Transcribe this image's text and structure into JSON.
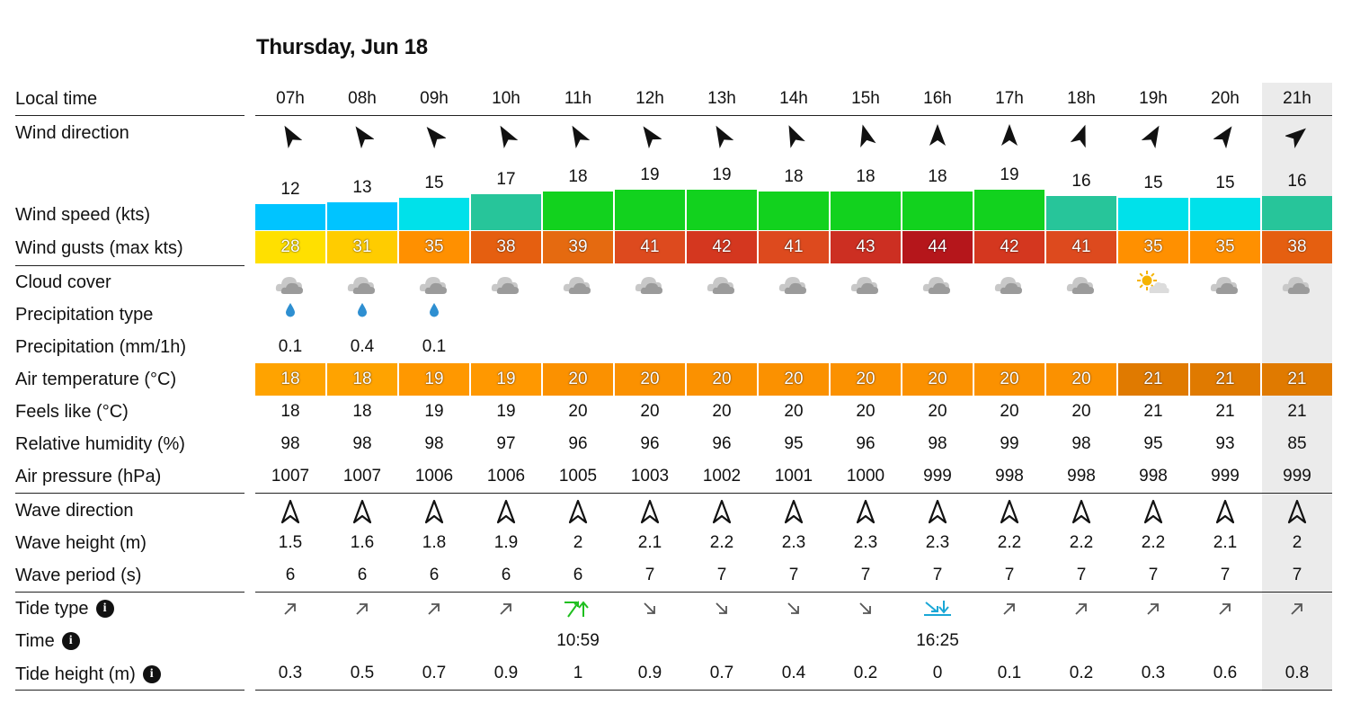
{
  "date_title": "Thursday, Jun 18",
  "highlight_index": 14,
  "labels": {
    "local_time": "Local time",
    "wind_direction": "Wind direction",
    "wind_speed": "Wind speed (kts)",
    "wind_gusts": "Wind gusts (max kts)",
    "cloud_cover": "Cloud cover",
    "precip_type": "Precipitation type",
    "precip": "Precipitation (mm/1h)",
    "air_temp": "Air temperature (°C)",
    "feels_like": "Feels like (°C)",
    "humidity": "Relative humidity (%)",
    "pressure": "Air pressure (hPa)",
    "wave_direction": "Wave direction",
    "wave_height": "Wave height (m)",
    "wave_period": "Wave period (s)",
    "tide_type": "Tide type",
    "tide_time": "Time",
    "tide_height": "Tide height (m)"
  },
  "info_icon_glyph": "i",
  "hours": [
    "07h",
    "08h",
    "09h",
    "10h",
    "11h",
    "12h",
    "13h",
    "14h",
    "15h",
    "16h",
    "17h",
    "18h",
    "19h",
    "20h",
    "21h"
  ],
  "wind_dir_deg": [
    150,
    145,
    140,
    150,
    150,
    145,
    150,
    155,
    165,
    180,
    180,
    200,
    210,
    215,
    230
  ],
  "wind_speed": [
    12,
    13,
    15,
    17,
    18,
    19,
    19,
    18,
    18,
    18,
    19,
    16,
    15,
    15,
    16
  ],
  "wind_speed_colors": [
    "#00c4ff",
    "#00c4ff",
    "#00e1ea",
    "#27c59a",
    "#12d21e",
    "#12d21e",
    "#12d21e",
    "#12d21e",
    "#12d21e",
    "#12d21e",
    "#12d21e",
    "#27c59a",
    "#00e1ea",
    "#00e1ea",
    "#27c59a"
  ],
  "wind_gusts": [
    "28",
    "31",
    "35",
    "38",
    "39",
    "41",
    "42",
    "41",
    "43",
    "44",
    "42",
    "41",
    "35",
    "35",
    "38"
  ],
  "wind_gust_colors": [
    "#ffe000",
    "#ffcc00",
    "#ff9000",
    "#e55f10",
    "#e56a10",
    "#dd4a1e",
    "#d4371f",
    "#dd4a1e",
    "#cc2f22",
    "#b5161b",
    "#d4371f",
    "#dd4a1e",
    "#ff9000",
    "#ff9000",
    "#e55f10"
  ],
  "cloud_icons": [
    "cloud-rain-icon",
    "cloud-rain-icon",
    "cloud-rain-icon",
    "cloud-icon",
    "cloud-icon",
    "cloud-icon",
    "cloud-icon",
    "cloud-icon",
    "cloud-icon",
    "cloud-icon",
    "cloud-icon",
    "cloud-icon",
    "partly-sunny-icon",
    "cloud-icon",
    "cloud-icon"
  ],
  "precip_type": [
    "rain",
    "rain",
    "rain",
    "",
    "",
    "",
    "",
    "",
    "",
    "",
    "",
    "",
    "",
    "",
    ""
  ],
  "precip": [
    "0.1",
    "0.4",
    "0.1",
    "",
    "",
    "",
    "",
    "",
    "",
    "",
    "",
    "",
    "",
    "",
    ""
  ],
  "air_temp": [
    "18",
    "18",
    "19",
    "19",
    "20",
    "20",
    "20",
    "20",
    "20",
    "20",
    "20",
    "20",
    "21",
    "21",
    "21"
  ],
  "air_temp_colors": [
    "#ffa300",
    "#ffa300",
    "#ff9800",
    "#ff9800",
    "#fb9100",
    "#fb9100",
    "#fb9100",
    "#fb9100",
    "#fb9100",
    "#fb9100",
    "#fb9100",
    "#fb9100",
    "#e07a00",
    "#e07a00",
    "#e07a00"
  ],
  "feels_like": [
    "18",
    "18",
    "19",
    "19",
    "20",
    "20",
    "20",
    "20",
    "20",
    "20",
    "20",
    "20",
    "21",
    "21",
    "21"
  ],
  "humidity": [
    "98",
    "98",
    "98",
    "97",
    "96",
    "96",
    "96",
    "95",
    "96",
    "98",
    "99",
    "98",
    "95",
    "93",
    "85"
  ],
  "pressure": [
    "1007",
    "1007",
    "1006",
    "1006",
    "1005",
    "1003",
    "1002",
    "1001",
    "1000",
    "999",
    "998",
    "998",
    "998",
    "999",
    "999"
  ],
  "wave_height": [
    "1.5",
    "1.6",
    "1.8",
    "1.9",
    "2",
    "2.1",
    "2.2",
    "2.3",
    "2.3",
    "2.3",
    "2.2",
    "2.2",
    "2.2",
    "2.1",
    "2"
  ],
  "wave_period": [
    "6",
    "6",
    "6",
    "6",
    "6",
    "7",
    "7",
    "7",
    "7",
    "7",
    "7",
    "7",
    "7",
    "7",
    "7"
  ],
  "tide_type": [
    "rising",
    "rising",
    "rising",
    "rising",
    "high",
    "falling",
    "falling",
    "falling",
    "falling",
    "low",
    "rising",
    "rising",
    "rising",
    "rising",
    "rising"
  ],
  "tide_high_color": "#1fbf1f",
  "tide_low_color": "#1aa7d6",
  "tide_time": [
    "",
    "",
    "",
    "",
    "10:59",
    "",
    "",
    "",
    "",
    "16:25",
    "",
    "",
    "",
    "",
    ""
  ],
  "tide_height": [
    "0.3",
    "0.5",
    "0.7",
    "0.9",
    "1",
    "0.9",
    "0.7",
    "0.4",
    "0.2",
    "0",
    "0.1",
    "0.2",
    "0.3",
    "0.6",
    "0.8"
  ]
}
